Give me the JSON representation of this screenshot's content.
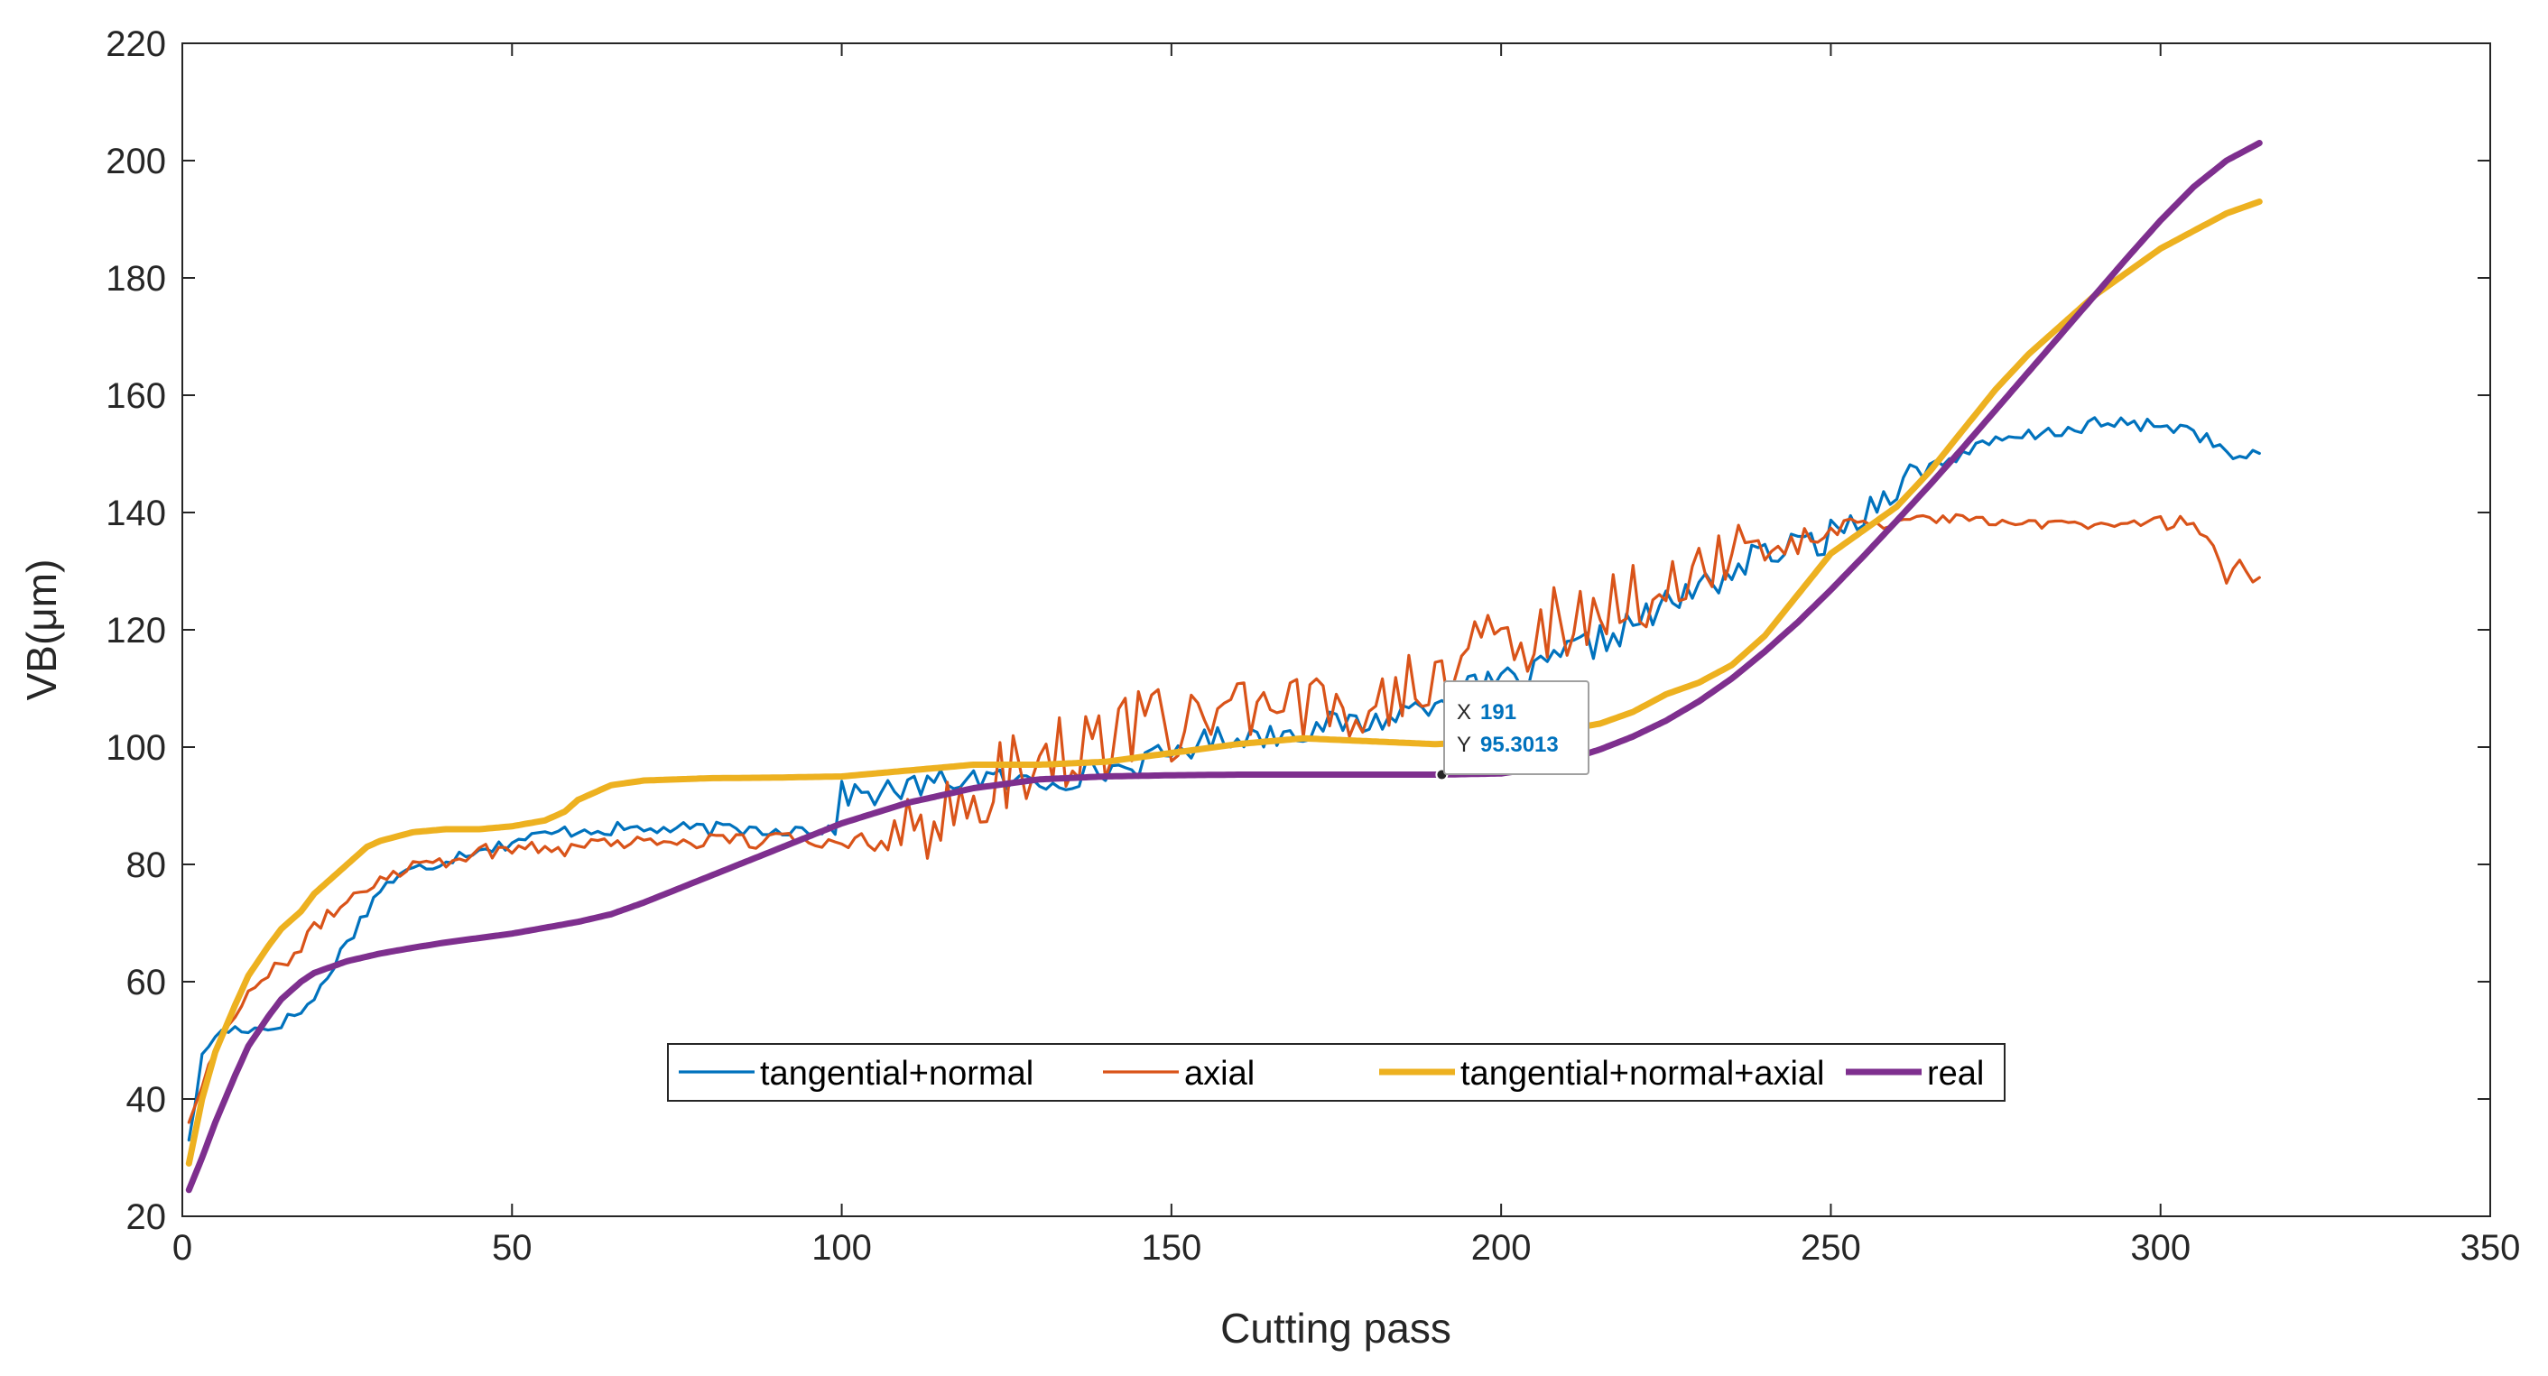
{
  "chart_data": {
    "type": "line",
    "title": "",
    "xlabel": "Cutting pass",
    "ylabel": "VB(μm)",
    "xlim": [
      0,
      350
    ],
    "ylim": [
      20,
      220
    ],
    "xticks": [
      0,
      50,
      100,
      150,
      200,
      250,
      300,
      350
    ],
    "yticks": [
      20,
      40,
      60,
      80,
      100,
      120,
      140,
      160,
      180,
      200,
      220
    ],
    "grid": false,
    "legend_position": "bottom-center",
    "legend_orientation": "horizontal",
    "series": [
      {
        "name": "tangential+normal",
        "color": "#0072bd",
        "style": "noisy",
        "x": [
          1,
          3,
          5,
          8,
          10,
          13,
          15,
          18,
          20,
          22,
          25,
          28,
          30,
          33,
          35,
          38,
          40,
          43,
          45,
          48,
          50,
          55,
          60,
          65,
          70,
          75,
          80,
          85,
          90,
          95,
          99,
          100,
          105,
          110,
          115,
          120,
          125,
          130,
          135,
          140,
          145,
          150,
          155,
          160,
          165,
          170,
          175,
          180,
          185,
          190,
          195,
          200,
          205,
          210,
          215,
          220,
          225,
          230,
          235,
          240,
          245,
          250,
          255,
          260,
          265,
          270,
          275,
          280,
          285,
          290,
          295,
          300,
          305,
          310,
          313,
          315
        ],
        "y": [
          33,
          47,
          51,
          52,
          52,
          52,
          53,
          55,
          57,
          61,
          67,
          72,
          76,
          78,
          79,
          80,
          81,
          82,
          83,
          83,
          84,
          85,
          86,
          86,
          86,
          86,
          86,
          86,
          86,
          86,
          86,
          92,
          92,
          93,
          94,
          95,
          94,
          94,
          95,
          96,
          97,
          99,
          101,
          102,
          102,
          103,
          104,
          104,
          106,
          108,
          110,
          111,
          112,
          116,
          118,
          121,
          124,
          127,
          130,
          133,
          134,
          136,
          140,
          145,
          148,
          150,
          152,
          153,
          154,
          155,
          155,
          155,
          154,
          150,
          149,
          150
        ]
      },
      {
        "name": "axial",
        "color": "#d95319",
        "style": "noisy",
        "x": [
          1,
          3,
          5,
          8,
          10,
          13,
          15,
          18,
          20,
          22,
          25,
          28,
          30,
          33,
          35,
          40,
          45,
          50,
          55,
          60,
          65,
          70,
          75,
          80,
          85,
          90,
          95,
          100,
          105,
          110,
          115,
          120,
          125,
          130,
          135,
          140,
          145,
          150,
          155,
          160,
          165,
          170,
          175,
          180,
          185,
          190,
          195,
          200,
          205,
          210,
          215,
          220,
          225,
          230,
          235,
          240,
          245,
          250,
          255,
          260,
          265,
          270,
          275,
          280,
          285,
          290,
          295,
          300,
          303,
          306,
          308,
          310,
          312,
          315
        ],
        "y": [
          36,
          43,
          48,
          55,
          58,
          61,
          63,
          66,
          69,
          71,
          74,
          76,
          78,
          79,
          80,
          81,
          82,
          83,
          83,
          83,
          84,
          84,
          84,
          84,
          84,
          84,
          84,
          84,
          85,
          86,
          87,
          90,
          96,
          98,
          100,
          101,
          103,
          104,
          106,
          105,
          104,
          106,
          107,
          109,
          111,
          113,
          115,
          117,
          119,
          122,
          124,
          126,
          128,
          130,
          131,
          133,
          135,
          137,
          138,
          138,
          139,
          139,
          138,
          138,
          138,
          138,
          138,
          139,
          138,
          137,
          135,
          129,
          131,
          129
        ]
      },
      {
        "name": "tangential+normal+axial",
        "color": "#edb120",
        "style": "smooth",
        "x": [
          1,
          3,
          5,
          8,
          10,
          13,
          15,
          18,
          20,
          25,
          28,
          30,
          35,
          40,
          45,
          50,
          55,
          58,
          60,
          65,
          70,
          75,
          80,
          90,
          100,
          110,
          120,
          130,
          140,
          150,
          160,
          170,
          180,
          190,
          200,
          210,
          215,
          220,
          225,
          230,
          235,
          240,
          245,
          250,
          255,
          260,
          265,
          270,
          275,
          280,
          285,
          290,
          295,
          300,
          305,
          310,
          315
        ],
        "y": [
          29,
          40,
          48,
          56,
          61,
          66,
          69,
          72,
          75,
          80,
          83,
          84,
          85.5,
          86,
          86,
          86.5,
          87.5,
          89,
          91,
          93.5,
          94.3,
          94.5,
          94.7,
          94.8,
          95,
          96,
          97,
          97,
          97.5,
          99,
          100.5,
          101.5,
          101,
          100.5,
          101,
          103,
          104,
          106,
          109,
          111,
          114,
          119,
          126,
          133,
          137,
          141,
          147,
          154,
          161,
          167,
          172,
          177,
          181,
          185,
          188,
          191,
          193
        ]
      },
      {
        "name": "real",
        "color": "#7e2f8e",
        "style": "smooth",
        "x": [
          1,
          3,
          5,
          8,
          10,
          13,
          15,
          18,
          20,
          25,
          30,
          35,
          40,
          50,
          60,
          65,
          70,
          80,
          90,
          100,
          110,
          120,
          130,
          140,
          150,
          160,
          170,
          180,
          190,
          200,
          205,
          210,
          215,
          220,
          225,
          230,
          235,
          240,
          245,
          250,
          255,
          260,
          265,
          270,
          275,
          280,
          285,
          290,
          295,
          300,
          305,
          310,
          315
        ],
        "y": [
          24.5,
          30,
          36,
          44,
          49,
          54,
          57,
          60,
          61.5,
          63.5,
          64.8,
          65.8,
          66.7,
          68.2,
          70.2,
          71.5,
          73.5,
          78,
          82.5,
          87,
          90.5,
          93,
          94.5,
          95,
          95.2,
          95.3,
          95.3,
          95.3,
          95.3,
          95.5,
          96.3,
          97.8,
          99.6,
          101.8,
          104.5,
          107.8,
          111.7,
          116.3,
          121.3,
          126.8,
          132.6,
          138.6,
          144.7,
          151,
          157.5,
          164,
          170.5,
          177,
          183.5,
          189.8,
          195.5,
          200,
          203
        ]
      }
    ],
    "annotation": {
      "type": "datatip",
      "series": "real",
      "x_key": "X",
      "y_key": "Y",
      "x_text": "191",
      "y_text": "95.3013",
      "x": 191,
      "y": 95.3013
    }
  }
}
